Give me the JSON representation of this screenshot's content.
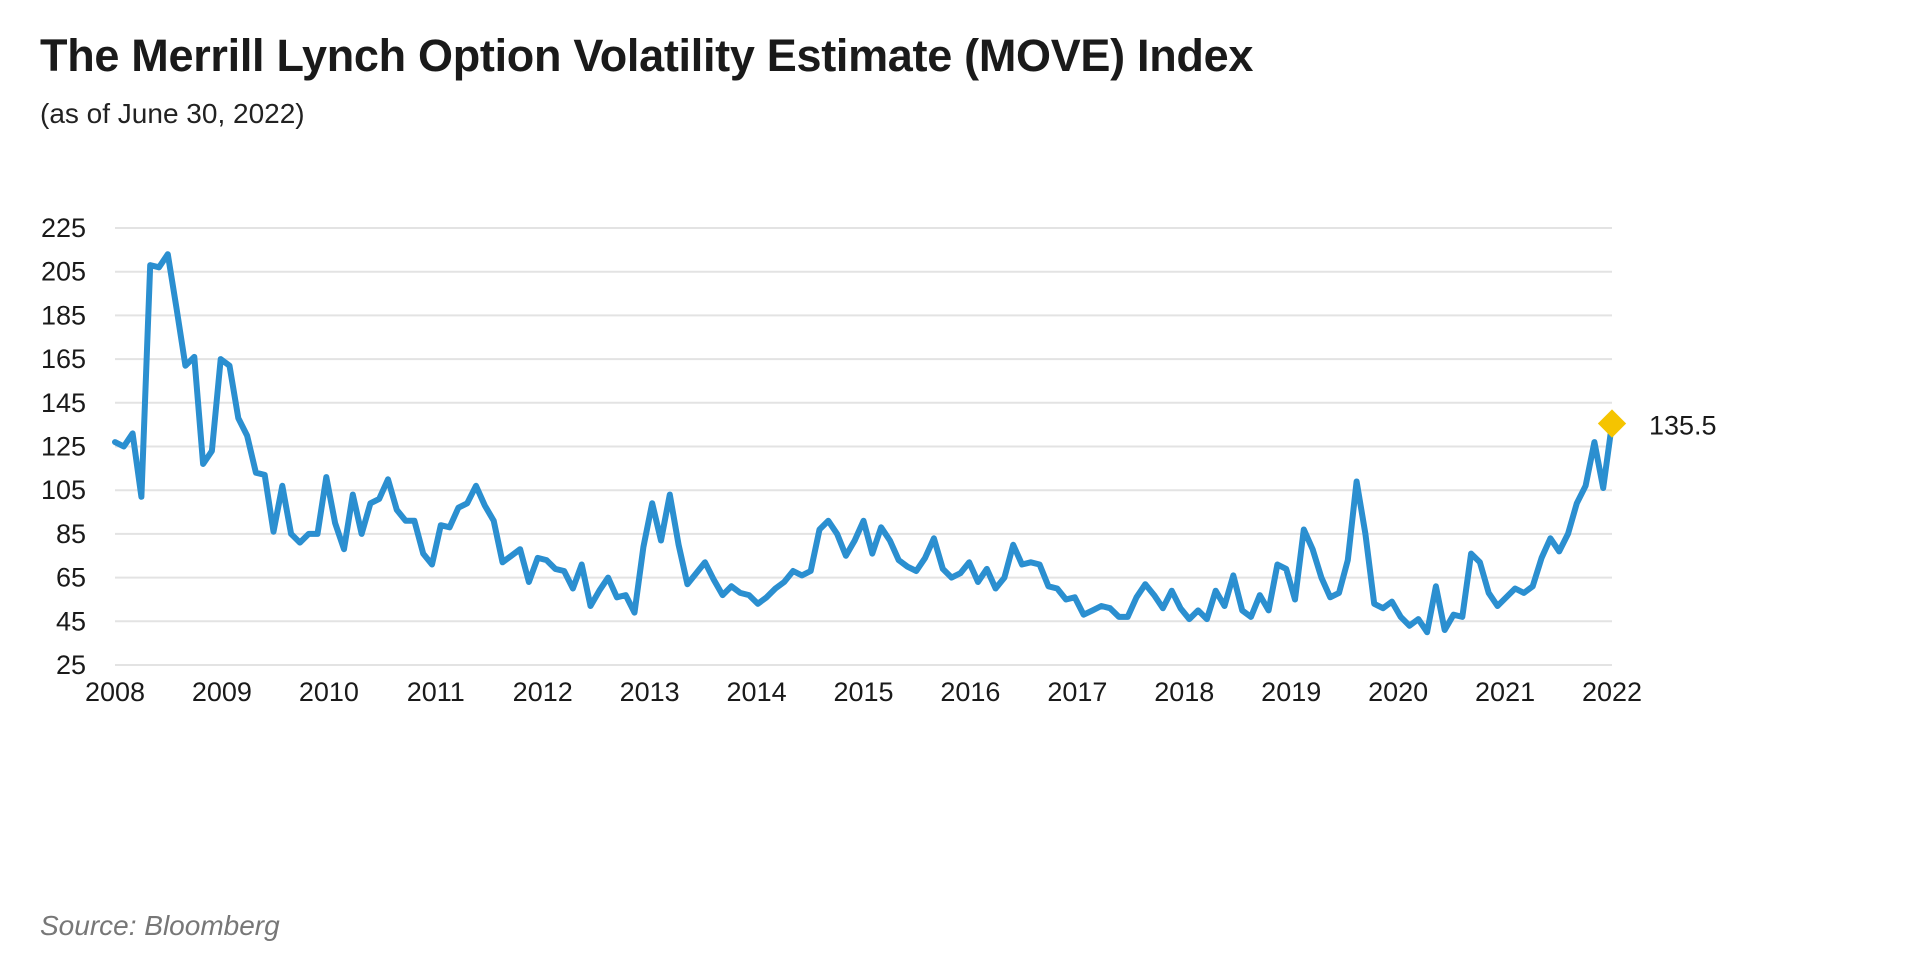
{
  "title": "The Merrill Lynch Option Volatility Estimate (MOVE) Index",
  "subtitle": "(as of June 30, 2022)",
  "source": "Source: Bloomberg",
  "colors": {
    "line": "#2b8fd0",
    "marker": "#f5c400",
    "grid": "#e3e3e3",
    "text": "#1a1a1a"
  },
  "chart_data": {
    "type": "line",
    "title": "The Merrill Lynch Option Volatility Estimate (MOVE) Index",
    "xlabel": "",
    "ylabel": "",
    "ylim": [
      25,
      225
    ],
    "yticks": [
      "225",
      "205",
      "185",
      "165",
      "145",
      "125",
      "105",
      "85",
      "65",
      "45",
      "25"
    ],
    "xticks": [
      "2008",
      "2009",
      "2010",
      "2011",
      "2012",
      "2013",
      "2014",
      "2015",
      "2016",
      "2017",
      "2018",
      "2019",
      "2020",
      "2021",
      "2022"
    ],
    "grid": true,
    "legend": "none",
    "series": [
      {
        "name": "MOVE Index",
        "values": [
          127,
          125,
          131,
          102,
          208,
          207,
          213,
          188,
          162,
          166,
          117,
          123,
          165,
          162,
          138,
          130,
          113,
          112,
          86,
          107,
          85,
          81,
          85,
          85,
          111,
          90,
          78,
          103,
          85,
          99,
          101,
          110,
          96,
          91,
          91,
          76,
          71,
          89,
          88,
          97,
          99,
          107,
          98,
          91,
          72,
          75,
          78,
          63,
          74,
          73,
          69,
          68,
          60,
          71,
          52,
          59,
          65,
          56,
          57,
          49,
          79,
          99,
          82,
          103,
          80,
          62,
          67,
          72,
          64,
          57,
          61,
          58,
          57,
          53,
          56,
          60,
          63,
          68,
          66,
          68,
          87,
          91,
          85,
          75,
          82,
          91,
          76,
          88,
          82,
          73,
          70,
          68,
          74,
          83,
          69,
          65,
          67,
          72,
          63,
          69,
          60,
          65,
          80,
          71,
          72,
          71,
          61,
          60,
          55,
          56,
          48,
          50,
          52,
          51,
          47,
          47,
          56,
          62,
          57,
          51,
          59,
          51,
          46,
          50,
          46,
          59,
          52,
          66,
          50,
          47,
          57,
          50,
          71,
          69,
          55,
          87,
          78,
          65,
          56,
          58,
          73,
          109,
          85,
          53,
          51,
          54,
          47,
          43,
          46,
          40,
          61,
          41,
          48,
          47,
          76,
          72,
          58,
          52,
          56,
          60,
          58,
          61,
          74,
          83,
          77,
          85,
          99,
          107,
          127,
          106,
          135.5
        ]
      }
    ],
    "annotation": {
      "label": "135.5",
      "value": 135.5
    }
  }
}
